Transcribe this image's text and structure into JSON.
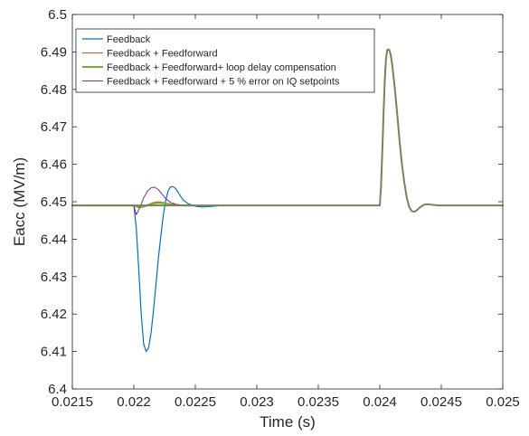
{
  "chart_data": {
    "type": "line",
    "xlabel": "Time (s)",
    "ylabel": "Eacc (MV/m)",
    "xlim": [
      0.0215,
      0.025
    ],
    "ylim": [
      6.4,
      6.5
    ],
    "xticks": [
      "0.0215",
      "0.022",
      "0.0225",
      "0.023",
      "0.0235",
      "0.024",
      "0.0245",
      "0.025"
    ],
    "yticks": [
      "6.4",
      "6.41",
      "6.42",
      "6.43",
      "6.44",
      "6.45",
      "6.46",
      "6.47",
      "6.48",
      "6.49",
      "6.5"
    ],
    "grid": false,
    "legend_position": "top-left",
    "series": [
      {
        "name": "Feedback",
        "color": "#0072BD",
        "width": 1.2,
        "x": [
          0.0215,
          0.02195,
          0.022,
          0.02202,
          0.02204,
          0.02206,
          0.02208,
          0.0221,
          0.02212,
          0.02214,
          0.02216,
          0.02218,
          0.0222,
          0.02222,
          0.02224,
          0.02226,
          0.02228,
          0.0223,
          0.02232,
          0.02234,
          0.02236,
          0.02238,
          0.0224,
          0.02244,
          0.02248,
          0.02252,
          0.02256,
          0.0226,
          0.02265,
          0.0227,
          0.02275,
          0.0228,
          0.02285,
          0.0229
        ],
        "y": [
          6.449,
          6.449,
          6.449,
          6.443,
          6.432,
          6.42,
          6.412,
          6.41,
          6.411,
          6.415,
          6.421,
          6.428,
          6.435,
          6.441,
          6.4465,
          6.4505,
          6.453,
          6.454,
          6.454,
          6.4535,
          6.4525,
          6.4515,
          6.4505,
          6.4495,
          6.449,
          6.4487,
          6.4486,
          6.4487,
          6.4488,
          6.449,
          6.449,
          6.449,
          6.449,
          6.449
        ]
      },
      {
        "name": "Feedback + Feedforward",
        "color": "#D95319",
        "width": 1.0,
        "x": [
          0.0215,
          0.022,
          0.02204,
          0.02208,
          0.02212,
          0.02216,
          0.0222,
          0.02224,
          0.02228,
          0.02232,
          0.02236,
          0.0224,
          0.02244,
          0.0225
        ],
        "y": [
          6.449,
          6.449,
          6.4486,
          6.4488,
          6.4493,
          6.4498,
          6.45,
          6.4498,
          6.4495,
          6.4493,
          6.4492,
          6.4491,
          6.449,
          6.449
        ]
      },
      {
        "name": "Feedback + Feedforward+ loop delay compensation",
        "color": "#77AC30",
        "width": 2.0,
        "x": [
          0.0215,
          0.022,
          0.02204,
          0.02208,
          0.02212,
          0.02216,
          0.0222,
          0.02224,
          0.02228,
          0.02232,
          0.02236,
          0.0224,
          0.02244,
          0.0225
        ],
        "y": [
          6.449,
          6.449,
          6.4485,
          6.4487,
          6.4491,
          6.4495,
          6.4497,
          6.4496,
          6.4494,
          6.4492,
          6.4491,
          6.449,
          6.449,
          6.449
        ]
      },
      {
        "name": "Feedback + Feedforward + 5 % error on IQ setpoints",
        "color": "#7E2F8E",
        "width": 1.0,
        "x": [
          0.0215,
          0.022,
          0.02202,
          0.02205,
          0.02208,
          0.02211,
          0.02214,
          0.02217,
          0.0222,
          0.02223,
          0.02226,
          0.0223,
          0.02234,
          0.02238,
          0.02242,
          0.02246,
          0.0225
        ],
        "y": [
          6.449,
          6.449,
          6.4465,
          6.4485,
          6.451,
          6.4528,
          6.4537,
          6.4539,
          6.4532,
          6.452,
          6.4508,
          6.4498,
          6.4493,
          6.4491,
          6.449,
          6.449,
          6.449
        ]
      },
      {
        "name": "",
        "color": "#7F7F60",
        "width": 2.0,
        "x": [
          0.0215,
          0.0225,
          0.024,
          0.02401,
          0.02402,
          0.02403,
          0.02404,
          0.02405,
          0.02406,
          0.02407,
          0.02408,
          0.02409,
          0.0241,
          0.02412,
          0.02414,
          0.02416,
          0.02418,
          0.0242,
          0.02422,
          0.02424,
          0.02426,
          0.02428,
          0.0243,
          0.02432,
          0.02434,
          0.02436,
          0.02438,
          0.0244,
          0.02442,
          0.02445,
          0.02448,
          0.0245,
          0.02455,
          0.0246,
          0.0247,
          0.025
        ],
        "y": [
          6.449,
          6.449,
          6.449,
          6.454,
          6.463,
          6.473,
          6.482,
          6.488,
          6.4905,
          6.4907,
          6.4903,
          6.489,
          6.4868,
          6.481,
          6.474,
          6.4665,
          6.46,
          6.455,
          6.451,
          6.4485,
          6.4475,
          6.4473,
          6.4477,
          6.4483,
          6.4488,
          6.4492,
          6.4493,
          6.4493,
          6.4492,
          6.4491,
          6.449,
          6.449,
          6.449,
          6.449,
          6.449,
          6.449
        ]
      }
    ]
  }
}
